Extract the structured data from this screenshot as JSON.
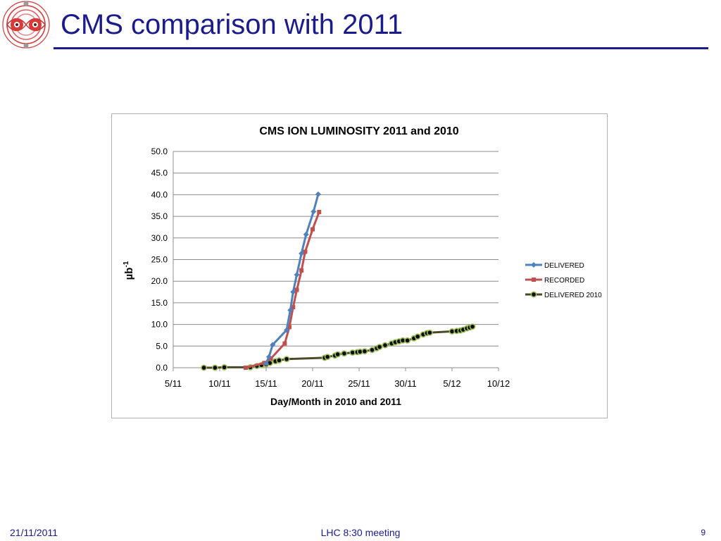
{
  "slide": {
    "title": "CMS comparison with 2011",
    "footer_date": "21/11/2011",
    "footer_meeting": "LHC 8:30 meeting",
    "page_number": "9"
  },
  "colors": {
    "title": "#1b1b8c",
    "delivered": "#4f81bd",
    "recorded": "#c0504d",
    "delivered_2010_line": "#4a4a2a",
    "delivered_2010_marker": "#0a0a0a",
    "delivered_2010_marker_edge": "#9bbb59"
  },
  "chart_data": {
    "type": "line",
    "title": "CMS ION LUMINOSITY 2011 and 2010",
    "xlabel": "Day/Month in 2010 and 2011",
    "ylabel": "µb-1",
    "ylabel_main": "µb",
    "ylabel_sup": "-1",
    "x_ticks": [
      "5/11",
      "10/11",
      "15/11",
      "20/11",
      "25/11",
      "30/11",
      "5/12",
      "10/12"
    ],
    "y_ticks": [
      "0.0",
      "5.0",
      "10.0",
      "15.0",
      "20.0",
      "25.0",
      "30.0",
      "35.0",
      "40.0",
      "45.0",
      "50.0"
    ],
    "xlim": [
      "5/11",
      "10/12"
    ],
    "ylim": [
      0,
      50
    ],
    "grid": "horizontal",
    "legend_position": "right",
    "series": [
      {
        "name": "DELIVERED",
        "points": [
          [
            "15/11",
            1.0
          ],
          [
            "15.3/11",
            2.5
          ],
          [
            "15.7/11",
            5.3
          ],
          [
            "17.2/11",
            8.7
          ],
          [
            "17.6/11",
            13.3
          ],
          [
            "17.9/11",
            17.5
          ],
          [
            "18.3/11",
            21.5
          ],
          [
            "18.8/11",
            26.4
          ],
          [
            "19.3/11",
            30.8
          ],
          [
            "20.1/11",
            36.1
          ],
          [
            "20.6/11",
            40.1
          ]
        ]
      },
      {
        "name": "RECORDED",
        "points": [
          [
            "12.8/11",
            0.0
          ],
          [
            "14.8/11",
            1.1
          ],
          [
            "15.5/11",
            2.1
          ],
          [
            "17/11",
            5.6
          ],
          [
            "17.5/11",
            9.4
          ],
          [
            "17.9/11",
            14.0
          ],
          [
            "18.3/11",
            18.0
          ],
          [
            "18.8/11",
            22.5
          ],
          [
            "19.2/11",
            26.8
          ],
          [
            "20.0/11",
            32.0
          ],
          [
            "20.7/11",
            36.0
          ]
        ]
      },
      {
        "name": "DELIVERED 2010",
        "points": [
          [
            "8.3/11",
            0.0
          ],
          [
            "9.5/11",
            0.0
          ],
          [
            "10.5/11",
            0.1
          ],
          [
            "13.3/11",
            0.1
          ],
          [
            "14/11",
            0.4
          ],
          [
            "14.5/11",
            0.6
          ],
          [
            "15/11",
            0.8
          ],
          [
            "15.4/11",
            1.1
          ],
          [
            "16/11",
            1.5
          ],
          [
            "16.4/11",
            1.7
          ],
          [
            "17.2/11",
            2.0
          ],
          [
            "21.3/11",
            2.3
          ],
          [
            "21.6/11",
            2.5
          ],
          [
            "22.4/11",
            2.8
          ],
          [
            "22.7/11",
            3.1
          ],
          [
            "23.4/11",
            3.3
          ],
          [
            "24.3/11",
            3.5
          ],
          [
            "24.8/11",
            3.6
          ],
          [
            "25.1/11",
            3.7
          ],
          [
            "25.6/11",
            3.8
          ],
          [
            "26.4/11",
            4.1
          ],
          [
            "26.9/11",
            4.5
          ],
          [
            "27.2/11",
            4.8
          ],
          [
            "27.8/11",
            5.2
          ],
          [
            "28.5/11",
            5.6
          ],
          [
            "28.9/11",
            5.9
          ],
          [
            "29.3/11",
            6.1
          ],
          [
            "29.7/11",
            6.3
          ],
          [
            "30.2/11",
            6.3
          ],
          [
            "30.9/11",
            6.8
          ],
          [
            "31.3/11",
            7.2
          ],
          [
            "31.9/11",
            7.7
          ],
          [
            "32.3/11",
            8.0
          ],
          [
            "32.6/11",
            8.1
          ],
          [
            "35/11",
            8.4
          ],
          [
            "35.5/11",
            8.5
          ],
          [
            "35.9/11",
            8.6
          ],
          [
            "36.2/11",
            8.8
          ],
          [
            "36.6/11",
            9.1
          ],
          [
            "36.9/11",
            9.3
          ],
          [
            "37.2/11",
            9.5
          ]
        ]
      }
    ]
  }
}
